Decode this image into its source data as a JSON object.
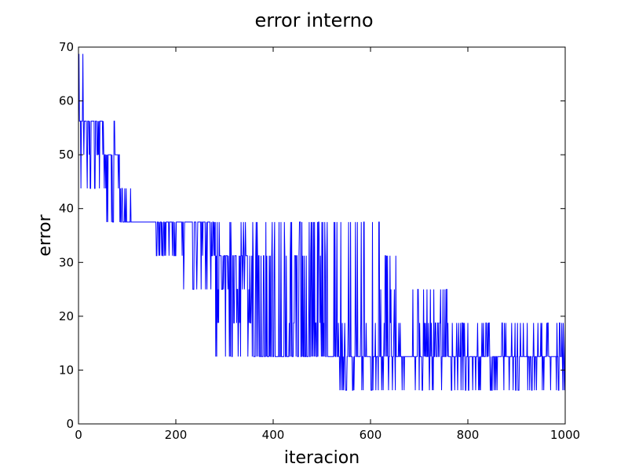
{
  "chart_data": {
    "type": "line",
    "title": "error interno",
    "xlabel": "iteracion",
    "ylabel": "error",
    "xlim": [
      0,
      1000
    ],
    "ylim": [
      0,
      70
    ],
    "xticks": [
      0,
      200,
      400,
      600,
      800,
      1000
    ],
    "yticks": [
      0,
      10,
      20,
      30,
      40,
      50,
      60,
      70
    ],
    "grid": false,
    "legend": "none",
    "series": [
      {
        "color": "#0000ff",
        "segments": [
          {
            "x": [
              0,
              10
            ],
            "levels": [
              50,
              56.25,
              62.5,
              68.75,
              43.75
            ],
            "base": 56.25
          },
          {
            "x": [
              10,
              50
            ],
            "levels": [
              50,
              56.25,
              43.75
            ],
            "base": 56.25
          },
          {
            "x": [
              50,
              85
            ],
            "levels": [
              50,
              56.25,
              43.75,
              37.5
            ],
            "base": 50
          },
          {
            "x": [
              85,
              110
            ],
            "levels": [
              37.5,
              43.75
            ],
            "base": 37.5
          },
          {
            "x": [
              110,
              160
            ],
            "levels": [
              37.5,
              43.75
            ],
            "base": 37.5,
            "density": 0.05
          },
          {
            "x": [
              160,
              200
            ],
            "levels": [
              37.5,
              31.25
            ],
            "base": 37.5
          },
          {
            "x": [
              200,
              280
            ],
            "levels": [
              37.5,
              31.25,
              25
            ],
            "base": 37.5
          },
          {
            "x": [
              280,
              360
            ],
            "levels": [
              37.5,
              31.25,
              25,
              18.75,
              12.5
            ],
            "base": 31.25
          },
          {
            "x": [
              360,
              430
            ],
            "levels": [
              12.5,
              37.5,
              31.25
            ],
            "base": 12.5
          },
          {
            "x": [
              430,
              530
            ],
            "levels": [
              12.5,
              18.75,
              37.5,
              31.25
            ],
            "base": 12.5
          },
          {
            "x": [
              530,
              620
            ],
            "levels": [
              12.5,
              18.75,
              6.25,
              37.5
            ],
            "base": 12.5
          },
          {
            "x": [
              620,
              670
            ],
            "levels": [
              12.5,
              18.75,
              6.25,
              31.25,
              25
            ],
            "base": 12.5
          },
          {
            "x": [
              670,
              685
            ],
            "levels": [
              12.5
            ],
            "base": 12.5
          },
          {
            "x": [
              685,
              760
            ],
            "levels": [
              12.5,
              18.75,
              6.25,
              25
            ],
            "base": 12.5
          },
          {
            "x": [
              760,
              800
            ],
            "levels": [
              12.5,
              18.75,
              6.25
            ],
            "base": 12.5
          },
          {
            "x": [
              800,
              1000
            ],
            "levels": [
              12.5,
              18.75,
              6.25
            ],
            "base": 12.5
          }
        ]
      }
    ]
  }
}
